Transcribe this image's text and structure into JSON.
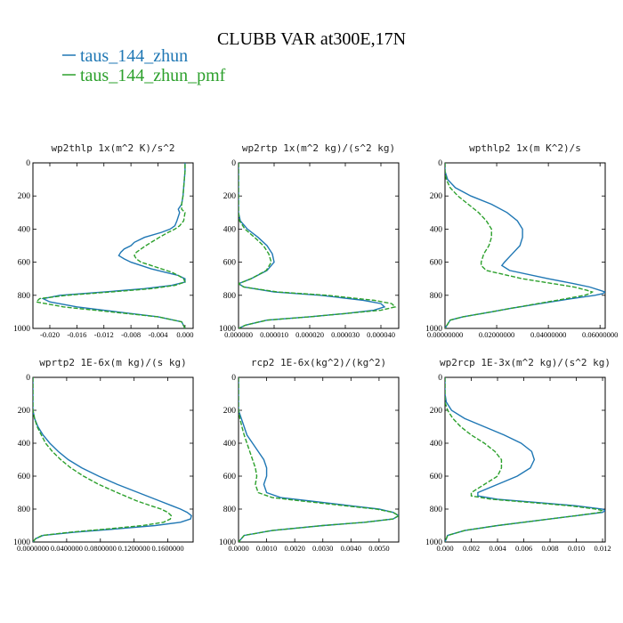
{
  "figure": {
    "title": "CLUBB VAR at300E,17N",
    "legend": [
      {
        "label": "taus_144_zhun",
        "color": "#1f77b4"
      },
      {
        "label": "taus_144_zhun_pmf",
        "color": "#2ca02c"
      }
    ]
  },
  "chart_data": [
    {
      "type": "line",
      "title": "wp2thlp   1x(m^2 K)/s^2",
      "ylim": [
        1000,
        0
      ],
      "xlim": [
        -0.0225,
        0.0012
      ],
      "xticks": [
        -0.02,
        -0.016,
        -0.012,
        -0.008,
        -0.004,
        0.0
      ],
      "xtick_labels": [
        "-0.020",
        "-0.016",
        "-0.012",
        "-0.008",
        "-0.004",
        "0.000"
      ],
      "yticks": [
        0,
        200,
        400,
        600,
        800,
        1000
      ],
      "series": [
        {
          "name": "taus_144_zhun",
          "color": "#1f77b4",
          "y": [
            1000,
            960,
            930,
            900,
            870,
            840,
            820,
            800,
            780,
            760,
            740,
            720,
            700,
            680,
            660,
            640,
            620,
            600,
            580,
            560,
            540,
            520,
            500,
            480,
            450,
            420,
            400,
            380,
            350,
            300,
            280,
            250,
            200,
            150,
            100,
            50,
            0
          ],
          "x": [
            0.0,
            -0.0005,
            -0.004,
            -0.01,
            -0.016,
            -0.02,
            -0.021,
            -0.0185,
            -0.012,
            -0.006,
            -0.002,
            0.0,
            0.0,
            -0.001,
            -0.003,
            -0.005,
            -0.0065,
            -0.008,
            -0.009,
            -0.0098,
            -0.0095,
            -0.009,
            -0.008,
            -0.0075,
            -0.006,
            -0.0035,
            -0.0022,
            -0.0015,
            -0.0012,
            -0.0008,
            -0.001,
            -0.0005,
            -0.0003,
            -0.0002,
            -0.0001,
            0.0,
            0.0
          ]
        },
        {
          "name": "taus_144_zhun_pmf",
          "color": "#2ca02c",
          "y": [
            1000,
            960,
            930,
            900,
            870,
            840,
            820,
            800,
            780,
            760,
            740,
            720,
            700,
            680,
            660,
            640,
            620,
            600,
            580,
            560,
            540,
            520,
            500,
            480,
            450,
            420,
            400,
            380,
            350,
            300,
            280,
            250,
            200,
            150,
            100,
            50,
            0
          ],
          "x": [
            0.0,
            -0.0005,
            -0.004,
            -0.011,
            -0.018,
            -0.022,
            -0.0215,
            -0.0175,
            -0.011,
            -0.005,
            -0.0015,
            0.0,
            -0.0002,
            -0.001,
            -0.002,
            -0.0035,
            -0.005,
            -0.0065,
            -0.0072,
            -0.0075,
            -0.0072,
            -0.0065,
            -0.0058,
            -0.005,
            -0.0038,
            -0.0025,
            -0.0015,
            -0.0008,
            -0.0002,
            0.0,
            -0.0005,
            -0.0005,
            -0.0003,
            -0.0002,
            -0.0001,
            0.0,
            0.0
          ]
        }
      ]
    },
    {
      "type": "line",
      "title": "wp2rtp   1x(m^2 kg)/(s^2 kg)",
      "ylim": [
        1000,
        0
      ],
      "xlim": [
        0.0,
        4.5e-05
      ],
      "xticks": [
        0.0,
        1e-05,
        2e-05,
        3e-05,
        4e-05
      ],
      "xtick_labels": [
        "0.000000",
        "0.000010",
        "0.000020",
        "0.000030",
        "0.000040"
      ],
      "yticks": [
        0,
        200,
        400,
        600,
        800,
        1000
      ],
      "series": [
        {
          "name": "taus_144_zhun",
          "color": "#1f77b4",
          "y": [
            0,
            100,
            200,
            300,
            350,
            400,
            450,
            500,
            550,
            600,
            650,
            700,
            730,
            750,
            780,
            800,
            830,
            850,
            870,
            890,
            910,
            930,
            950,
            980,
            1000
          ],
          "x": [
            0.0,
            0.0,
            0.0,
            0.0,
            5e-07,
            2.5e-06,
            5.5e-06,
            8e-06,
            9.5e-06,
            1e-05,
            8e-06,
            3.5e-06,
            0.0,
            1.5e-06,
            1e-05,
            2.3e-05,
            3.5e-05,
            4e-05,
            4.1e-05,
            3.8e-05,
            3e-05,
            2e-05,
            8e-06,
            2e-06,
            0.0
          ]
        },
        {
          "name": "taus_144_zhun_pmf",
          "color": "#2ca02c",
          "y": [
            0,
            100,
            200,
            300,
            350,
            400,
            450,
            500,
            550,
            600,
            650,
            700,
            730,
            750,
            780,
            800,
            830,
            850,
            870,
            890,
            910,
            930,
            950,
            980,
            1000
          ],
          "x": [
            0.0,
            0.0,
            0.0,
            0.0,
            3e-07,
            1.8e-06,
            4.5e-06,
            7e-06,
            8.5e-06,
            9.2e-06,
            7.8e-06,
            3.5e-06,
            0.0,
            1.5e-06,
            1.1e-05,
            2.5e-05,
            3.8e-05,
            4.3e-05,
            4.4e-05,
            4e-05,
            3e-05,
            2e-05,
            8e-06,
            2e-06,
            0.0
          ]
        }
      ]
    },
    {
      "type": "line",
      "title": "wpthlp2   1x(m K^2)/s",
      "ylim": [
        1000,
        0
      ],
      "xlim": [
        0.0,
        0.062
      ],
      "xticks": [
        0.0,
        0.02,
        0.04,
        0.06
      ],
      "xtick_labels": [
        "0.00000000",
        "0.02000000",
        "0.04000000",
        "0.06000000"
      ],
      "yticks": [
        0,
        200,
        400,
        600,
        800,
        1000
      ],
      "series": [
        {
          "name": "taus_144_zhun",
          "color": "#1f77b4",
          "y": [
            0,
            50,
            100,
            150,
            200,
            250,
            300,
            350,
            400,
            450,
            500,
            550,
            600,
            620,
            650,
            700,
            730,
            750,
            770,
            780,
            790,
            800,
            820,
            850,
            880,
            900,
            930,
            950,
            1000
          ],
          "x": [
            0.0,
            0.0,
            0.001,
            0.004,
            0.01,
            0.018,
            0.024,
            0.028,
            0.03,
            0.03,
            0.029,
            0.026,
            0.023,
            0.022,
            0.025,
            0.04,
            0.05,
            0.056,
            0.06,
            0.062,
            0.061,
            0.058,
            0.049,
            0.037,
            0.025,
            0.018,
            0.007,
            0.002,
            0.0
          ]
        },
        {
          "name": "taus_144_zhun_pmf",
          "color": "#2ca02c",
          "y": [
            0,
            50,
            100,
            150,
            200,
            250,
            300,
            350,
            400,
            450,
            500,
            550,
            600,
            620,
            650,
            700,
            730,
            750,
            770,
            780,
            790,
            800,
            820,
            850,
            880,
            900,
            930,
            950,
            1000
          ],
          "x": [
            0.0,
            0.0,
            0.0005,
            0.002,
            0.005,
            0.009,
            0.013,
            0.016,
            0.018,
            0.018,
            0.017,
            0.015,
            0.014,
            0.014,
            0.016,
            0.03,
            0.042,
            0.05,
            0.055,
            0.057,
            0.056,
            0.054,
            0.047,
            0.036,
            0.025,
            0.018,
            0.007,
            0.002,
            0.0
          ]
        }
      ]
    },
    {
      "type": "line",
      "title": "wprtp2   1E-6x(m kg)/(s kg)",
      "ylim": [
        1000,
        0
      ],
      "xlim": [
        0.0,
        0.19
      ],
      "xticks": [
        0.0,
        0.04,
        0.08,
        0.12,
        0.16
      ],
      "xtick_labels": [
        "0.0000000",
        "0.0400000",
        "0.0800000",
        "0.1200000",
        "0.1600000"
      ],
      "yticks": [
        0,
        200,
        400,
        600,
        800,
        1000
      ],
      "series": [
        {
          "name": "taus_144_zhun",
          "color": "#1f77b4",
          "y": [
            0,
            100,
            200,
            250,
            300,
            350,
            400,
            450,
            500,
            550,
            600,
            650,
            700,
            750,
            780,
            800,
            820,
            840,
            860,
            880,
            900,
            920,
            940,
            960,
            980,
            1000
          ],
          "x": [
            0.0,
            0.0,
            0.0,
            0.002,
            0.006,
            0.012,
            0.02,
            0.03,
            0.042,
            0.058,
            0.078,
            0.1,
            0.125,
            0.15,
            0.165,
            0.175,
            0.183,
            0.188,
            0.187,
            0.175,
            0.145,
            0.1,
            0.05,
            0.012,
            0.003,
            0.0
          ]
        },
        {
          "name": "taus_144_zhun_pmf",
          "color": "#2ca02c",
          "y": [
            0,
            100,
            200,
            250,
            300,
            350,
            400,
            450,
            500,
            550,
            600,
            650,
            700,
            750,
            780,
            800,
            820,
            840,
            860,
            880,
            900,
            920,
            940,
            960,
            980,
            1000
          ],
          "x": [
            0.0,
            0.0,
            0.0,
            0.002,
            0.005,
            0.01,
            0.015,
            0.023,
            0.033,
            0.045,
            0.06,
            0.078,
            0.1,
            0.123,
            0.14,
            0.152,
            0.16,
            0.164,
            0.163,
            0.155,
            0.13,
            0.09,
            0.045,
            0.011,
            0.003,
            0.0
          ]
        }
      ]
    },
    {
      "type": "line",
      "title": "rcp2   1E-6x(kg^2)/(kg^2)",
      "ylim": [
        1000,
        0
      ],
      "xlim": [
        0.0,
        0.0057
      ],
      "xticks": [
        0.0,
        0.001,
        0.002,
        0.003,
        0.004,
        0.005
      ],
      "xtick_labels": [
        "0.0000",
        "0.0010",
        "0.0020",
        "0.0030",
        "0.0040",
        "0.0050"
      ],
      "yticks": [
        0,
        200,
        400,
        600,
        800,
        1000
      ],
      "series": [
        {
          "name": "taus_144_zhun",
          "color": "#1f77b4",
          "y": [
            0,
            150,
            200,
            250,
            300,
            350,
            400,
            450,
            500,
            550,
            600,
            650,
            700,
            730,
            750,
            780,
            800,
            820,
            840,
            860,
            880,
            900,
            930,
            960,
            1000
          ],
          "x": [
            0.0,
            0.0,
            0.0,
            0.0001,
            0.0002,
            0.0003,
            0.0005,
            0.0007,
            0.0009,
            0.001,
            0.001,
            0.0009,
            0.001,
            0.0015,
            0.0025,
            0.004,
            0.005,
            0.0055,
            0.0057,
            0.0055,
            0.0045,
            0.003,
            0.0012,
            0.0002,
            0.0
          ]
        },
        {
          "name": "taus_144_zhun_pmf",
          "color": "#2ca02c",
          "y": [
            0,
            150,
            200,
            250,
            300,
            350,
            400,
            450,
            500,
            550,
            600,
            650,
            700,
            730,
            750,
            780,
            800,
            820,
            840,
            860,
            880,
            900,
            930,
            960,
            1000
          ],
          "x": [
            0.0,
            0.0,
            0.0,
            5e-05,
            0.00012,
            0.0002,
            0.0003,
            0.0004,
            0.0005,
            0.0006,
            0.00065,
            0.0006,
            0.0007,
            0.0012,
            0.0022,
            0.0038,
            0.0049,
            0.0055,
            0.0057,
            0.0055,
            0.0045,
            0.003,
            0.0012,
            0.0002,
            0.0
          ]
        }
      ]
    },
    {
      "type": "line",
      "title": "wp2rcp   1E-3x(m^2 kg)/(s^2 kg)",
      "ylim": [
        1000,
        0
      ],
      "xlim": [
        0.0,
        0.0122
      ],
      "xticks": [
        0.0,
        0.002,
        0.004,
        0.006,
        0.008,
        0.01,
        0.012
      ],
      "xtick_labels": [
        "0.000",
        "0.002",
        "0.004",
        "0.006",
        "0.008",
        "0.010",
        "0.012"
      ],
      "yticks": [
        0,
        200,
        400,
        600,
        800,
        1000
      ],
      "series": [
        {
          "name": "taus_144_zhun",
          "color": "#1f77b4",
          "y": [
            0,
            100,
            150,
            200,
            250,
            300,
            350,
            400,
            450,
            500,
            550,
            600,
            650,
            700,
            720,
            740,
            760,
            780,
            800,
            810,
            820,
            840,
            870,
            900,
            930,
            960,
            1000
          ],
          "x": [
            0.0,
            0.0,
            0.0001,
            0.0005,
            0.0015,
            0.003,
            0.0045,
            0.0058,
            0.0066,
            0.0068,
            0.0065,
            0.0055,
            0.004,
            0.0025,
            0.0025,
            0.004,
            0.007,
            0.01,
            0.012,
            0.0122,
            0.012,
            0.01,
            0.007,
            0.004,
            0.0015,
            0.0002,
            0.0
          ]
        },
        {
          "name": "taus_144_zhun_pmf",
          "color": "#2ca02c",
          "y": [
            0,
            100,
            150,
            200,
            250,
            300,
            350,
            400,
            450,
            500,
            550,
            600,
            650,
            700,
            720,
            740,
            760,
            780,
            800,
            810,
            820,
            840,
            870,
            900,
            930,
            960,
            1000
          ],
          "x": [
            0.0,
            0.0,
            0.0,
            0.0002,
            0.0006,
            0.0012,
            0.002,
            0.003,
            0.0038,
            0.0043,
            0.0043,
            0.004,
            0.003,
            0.002,
            0.002,
            0.0035,
            0.0065,
            0.0095,
            0.0115,
            0.012,
            0.0118,
            0.01,
            0.007,
            0.004,
            0.0015,
            0.0002,
            0.0
          ]
        }
      ]
    }
  ]
}
